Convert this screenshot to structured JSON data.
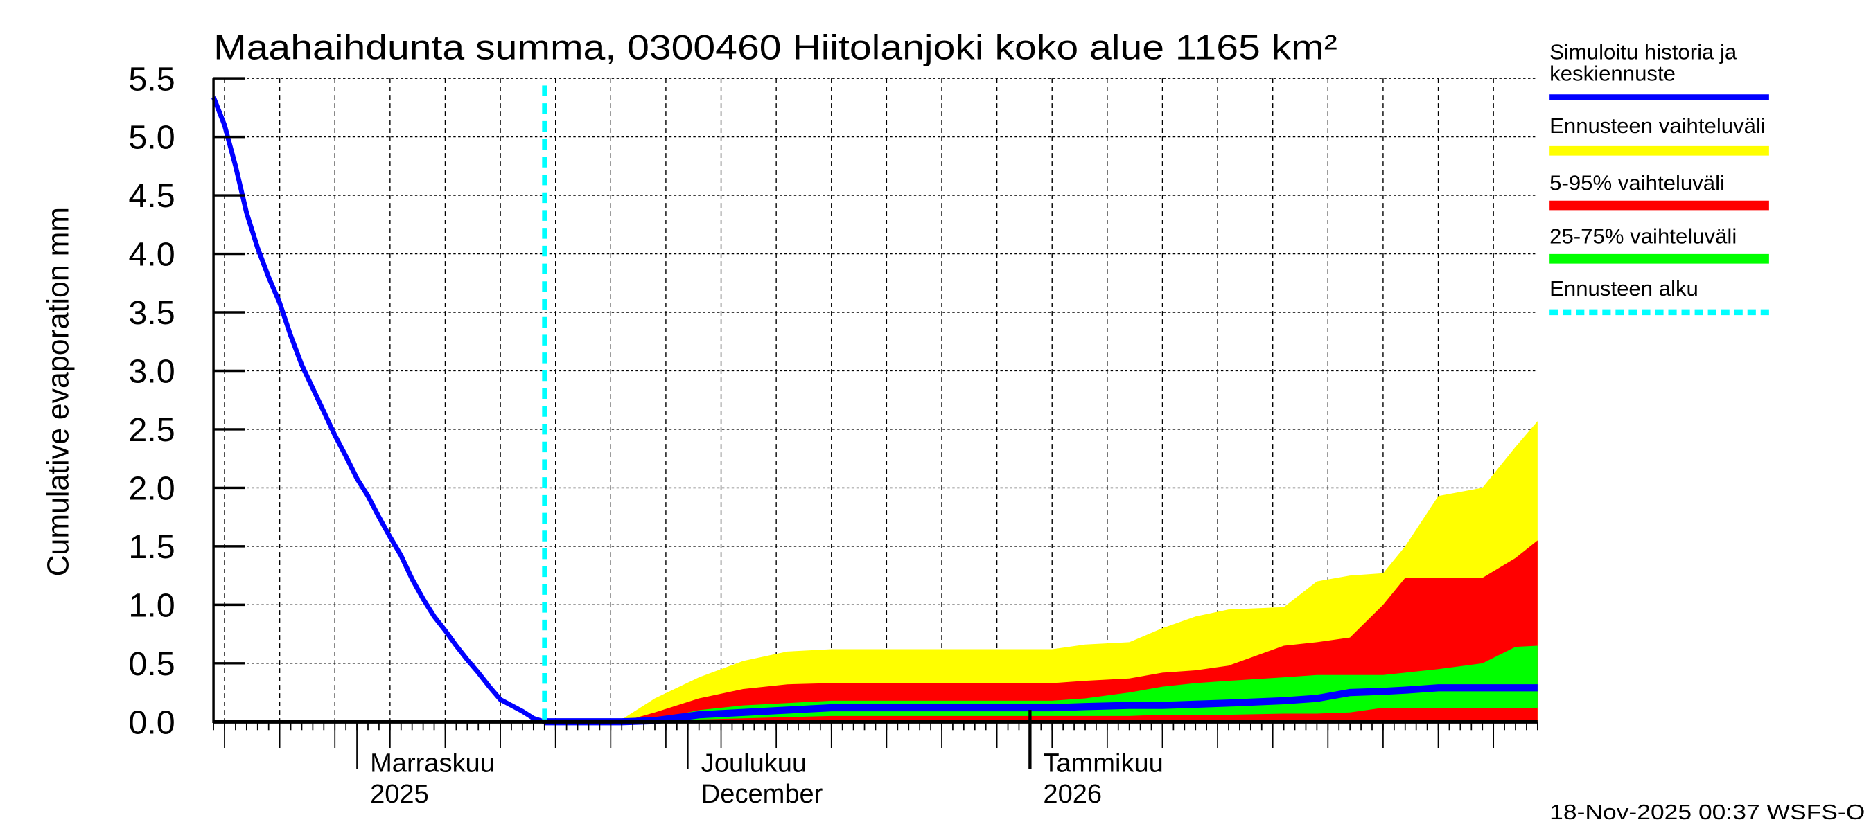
{
  "chart_data": {
    "type": "area",
    "title": "Maahaihdunta summa, 0300460 Hiitolanjoki koko alue 1165 km²",
    "ylabel": "Cumulative evaporation   mm",
    "ylim": [
      0,
      5.5
    ],
    "yticks": [
      "0.0",
      "0.5",
      "1.0",
      "1.5",
      "2.0",
      "2.5",
      "3.0",
      "3.5",
      "4.0",
      "4.5",
      "5.0",
      "5.5"
    ],
    "xlim": [
      "2025-10-19",
      "2026-02-16"
    ],
    "grid": true,
    "legend_placement": "right",
    "month_labels": [
      {
        "date": "2025-11-01",
        "line1": "Marraskuu",
        "line2": "2025"
      },
      {
        "date": "2025-12-01",
        "line1": "Joulukuu",
        "line2": "December"
      },
      {
        "date": "2026-01-01",
        "line1": "Tammikuu",
        "line2": "2026"
      }
    ],
    "forecast_start": "2025-11-18",
    "history": {
      "start": "2025-10-19",
      "values": [
        5.34,
        5.1,
        4.75,
        4.35,
        4.05,
        3.8,
        3.58,
        3.3,
        3.05,
        2.85,
        2.65,
        2.45,
        2.27,
        2.08,
        1.93,
        1.75,
        1.58,
        1.42,
        1.22,
        1.05,
        0.9,
        0.78,
        0.65,
        0.53,
        0.42,
        0.3,
        0.19,
        0.14,
        0.09,
        0.03,
        0.0
      ]
    },
    "forecast": {
      "dates": [
        "2025-11-18",
        "2025-11-22",
        "2025-11-25",
        "2025-11-28",
        "2025-12-02",
        "2025-12-06",
        "2025-12-10",
        "2025-12-14",
        "2026-01-03",
        "2026-01-06",
        "2026-01-10",
        "2026-01-13",
        "2026-01-16",
        "2026-01-19",
        "2026-01-24",
        "2026-01-27",
        "2026-01-30",
        "2026-02-02",
        "2026-02-04",
        "2026-02-07",
        "2026-02-11",
        "2026-02-14",
        "2026-02-16"
      ],
      "max": [
        0,
        0,
        0.02,
        0.2,
        0.38,
        0.52,
        0.6,
        0.62,
        0.62,
        0.66,
        0.68,
        0.8,
        0.9,
        0.96,
        0.98,
        1.2,
        1.25,
        1.27,
        1.5,
        1.93,
        2.0,
        2.35,
        2.57
      ],
      "p95": [
        0,
        0,
        0,
        0.08,
        0.2,
        0.28,
        0.32,
        0.33,
        0.33,
        0.35,
        0.37,
        0.42,
        0.44,
        0.48,
        0.65,
        0.68,
        0.72,
        1.0,
        1.23,
        1.23,
        1.23,
        1.4,
        1.55
      ],
      "p75": [
        0,
        0,
        0,
        0.02,
        0.1,
        0.14,
        0.16,
        0.18,
        0.18,
        0.2,
        0.25,
        0.3,
        0.33,
        0.35,
        0.38,
        0.4,
        0.4,
        0.4,
        0.42,
        0.45,
        0.5,
        0.64,
        0.65
      ],
      "mean": [
        0,
        0,
        0,
        0.01,
        0.06,
        0.08,
        0.1,
        0.12,
        0.12,
        0.13,
        0.14,
        0.14,
        0.15,
        0.16,
        0.18,
        0.2,
        0.25,
        0.26,
        0.27,
        0.29,
        0.29,
        0.29,
        0.29
      ],
      "p25": [
        0,
        0,
        0,
        0,
        0.02,
        0.03,
        0.04,
        0.05,
        0.05,
        0.05,
        0.05,
        0.06,
        0.06,
        0.06,
        0.07,
        0.07,
        0.08,
        0.12,
        0.12,
        0.12,
        0.12,
        0.12,
        0.12
      ],
      "p5": [
        0,
        0,
        0,
        0,
        0,
        0,
        0,
        0,
        0,
        0,
        0,
        0,
        0,
        0,
        0,
        0,
        0,
        0,
        0,
        0,
        0,
        0,
        0
      ]
    },
    "legend": [
      {
        "label1": "Simuloitu historia ja",
        "label2": "keskiennuste",
        "color": "#0000ff"
      },
      {
        "label1": "Ennusteen vaihteluväli",
        "color": "#ffff00"
      },
      {
        "label1": "5-95% vaihteluväli",
        "color": "#ff0000"
      },
      {
        "label1": "25-75% vaihteluväli",
        "color": "#00ff00"
      },
      {
        "label1": "Ennusteen alku",
        "color": "#00ffff"
      }
    ]
  },
  "footer": {
    "timestamp": "18-Nov-2025 00:37 WSFS-O"
  }
}
